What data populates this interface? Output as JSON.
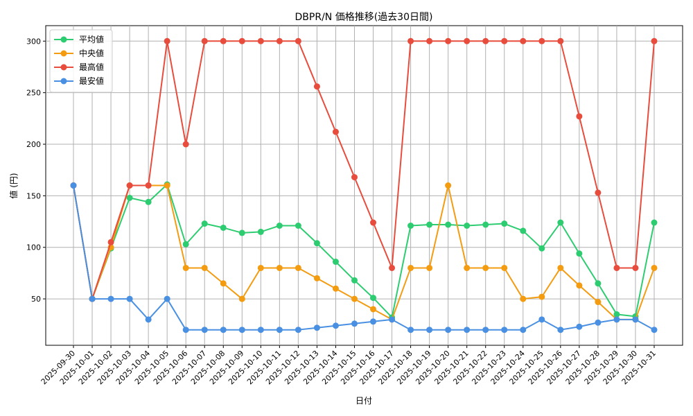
{
  "chart_data": {
    "type": "line",
    "title": "DBPR/N 価格推移(過去30日間)",
    "xlabel": "日付",
    "ylabel": "値 (円)",
    "ylim": [
      5,
      315
    ],
    "yticks": [
      50,
      100,
      150,
      200,
      250,
      300
    ],
    "grid": true,
    "legend_position": "top-left",
    "categories": [
      "2025-09-30",
      "2025-10-01",
      "2025-10-02",
      "2025-10-03",
      "2025-10-04",
      "2025-10-05",
      "2025-10-06",
      "2025-10-07",
      "2025-10-08",
      "2025-10-09",
      "2025-10-10",
      "2025-10-11",
      "2025-10-12",
      "2025-10-13",
      "2025-10-14",
      "2025-10-15",
      "2025-10-16",
      "2025-10-17",
      "2025-10-18",
      "2025-10-19",
      "2025-10-20",
      "2025-10-21",
      "2025-10-22",
      "2025-10-23",
      "2025-10-24",
      "2025-10-25",
      "2025-10-26",
      "2025-10-27",
      "2025-10-28",
      "2025-10-29",
      "2025-10-30",
      "2025-10-31"
    ],
    "series": [
      {
        "name": "平均値",
        "color": "#2ecc71",
        "values": [
          160,
          50,
          99,
          148,
          144,
          161,
          103,
          123,
          119,
          114,
          115,
          121,
          121,
          104,
          86,
          68,
          51,
          32,
          121,
          122,
          122,
          121,
          122,
          123,
          116,
          99,
          124,
          94,
          65,
          35,
          33,
          124
        ]
      },
      {
        "name": "中央値",
        "color": "#f39c12",
        "values": [
          160,
          50,
          100,
          160,
          160,
          160,
          80,
          80,
          65,
          50,
          80,
          80,
          80,
          70,
          60,
          50,
          40,
          30,
          80,
          80,
          160,
          80,
          80,
          80,
          50,
          52,
          80,
          63,
          47,
          30,
          30,
          80
        ]
      },
      {
        "name": "最高値",
        "color": "#e74c3c",
        "values": [
          160,
          50,
          105,
          160,
          160,
          300,
          200,
          300,
          300,
          300,
          300,
          300,
          300,
          256,
          212,
          168,
          124,
          80,
          300,
          300,
          300,
          300,
          300,
          300,
          300,
          300,
          300,
          227,
          153,
          80,
          80,
          300
        ]
      },
      {
        "name": "最安値",
        "color": "#4a90e2",
        "values": [
          160,
          50,
          50,
          50,
          30,
          50,
          20,
          20,
          20,
          20,
          20,
          20,
          20,
          22,
          24,
          26,
          28,
          30,
          20,
          20,
          20,
          20,
          20,
          20,
          20,
          30,
          20,
          23,
          27,
          30,
          30,
          20
        ]
      }
    ]
  }
}
